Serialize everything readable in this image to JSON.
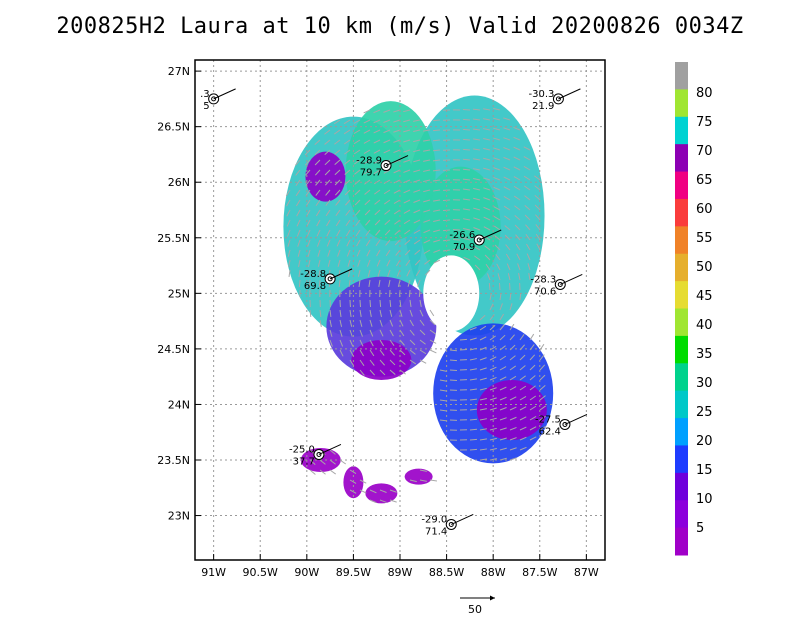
{
  "title": "200825H2 Laura at 10 km (m/s) Valid 20200826  0034Z",
  "chart_data": {
    "type": "wind-vector map",
    "title": "200825H2 Laura at 10 km (m/s) Valid 20200826  0034Z",
    "x_range": [
      -91.2,
      -86.8
    ],
    "y_range": [
      22.6,
      27.1
    ],
    "x_ticks": [
      -91,
      -90.5,
      -90,
      -89.5,
      -89,
      -88.5,
      -88,
      -87.5,
      -87
    ],
    "x_tick_labels": [
      "91W",
      "90.5W",
      "90W",
      "89.5W",
      "89W",
      "88.5W",
      "88W",
      "87.5W",
      "87W"
    ],
    "y_ticks": [
      23,
      23.5,
      24,
      24.5,
      25,
      25.5,
      26,
      26.5,
      27
    ],
    "y_tick_labels": [
      "23N",
      "23.5N",
      "24N",
      "24.5N",
      "25N",
      "25.5N",
      "26N",
      "26.5N",
      "27N"
    ],
    "grid": true,
    "colorbar": {
      "labels": [
        "5",
        "10",
        "15",
        "20",
        "25",
        "30",
        "35",
        "40",
        "45",
        "50",
        "55",
        "60",
        "65",
        "70",
        "75",
        "80"
      ],
      "colors": [
        "#a000c8",
        "#8c00dc",
        "#6e00dc",
        "#1e3cff",
        "#00a0ff",
        "#00c8c8",
        "#00d28c",
        "#00dc00",
        "#a0e632",
        "#e6dc32",
        "#e6af2d",
        "#f08228",
        "#fa3c3c",
        "#f00082",
        "#8c00b4",
        "#00d2d2",
        "#a0e632",
        "#a0a0a0"
      ]
    },
    "reference_vector": "50",
    "stations": [
      {
        "lon": -91.0,
        "lat": 26.75,
        "t": ".3",
        "ws": "5"
      },
      {
        "lon": -87.3,
        "lat": 26.75,
        "t": "-30.3",
        "ws": "21.9"
      },
      {
        "lon": -89.15,
        "lat": 26.15,
        "t": "-28.9",
        "ws": "79.7"
      },
      {
        "lon": -88.15,
        "lat": 25.48,
        "t": "-26.6",
        "ws": "70.9"
      },
      {
        "lon": -89.75,
        "lat": 25.13,
        "t": "-28.8",
        "ws": "69.8"
      },
      {
        "lon": -87.28,
        "lat": 25.08,
        "t": "-28.3",
        "ws": "70.6"
      },
      {
        "lon": -87.23,
        "lat": 23.82,
        "t": "-27.5",
        "ws": "62.4"
      },
      {
        "lon": -89.87,
        "lat": 23.55,
        "t": "-25.0",
        "ws": "37.7"
      },
      {
        "lon": -88.45,
        "lat": 22.92,
        "t": "-29.0",
        "ws": "71.4"
      }
    ]
  }
}
